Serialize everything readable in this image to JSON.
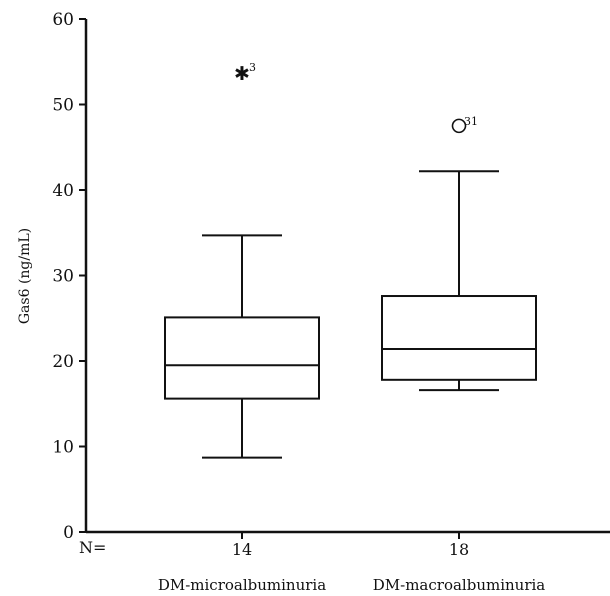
{
  "chart_data": {
    "type": "box",
    "ylabel": "Gas6 (ng/mL)",
    "ylim": [
      0,
      60
    ],
    "yticks": [
      0,
      10,
      20,
      30,
      40,
      50,
      60
    ],
    "n_prefix": "N=",
    "grid": false,
    "categories": [
      {
        "name": "DM-microalbuminuria",
        "n": "14",
        "min": 8.7,
        "q1": 15.6,
        "median": 19.5,
        "q3": 25.1,
        "max": 34.7,
        "outliers": [
          {
            "value": 53.7,
            "marker": "star",
            "label": "3"
          }
        ]
      },
      {
        "name": "DM-macroalbuminuria",
        "n": "18",
        "min": 16.6,
        "q1": 17.8,
        "median": 21.4,
        "q3": 27.6,
        "max": 42.2,
        "outliers": [
          {
            "value": 47.5,
            "marker": "circle",
            "label": "31"
          }
        ]
      }
    ]
  }
}
